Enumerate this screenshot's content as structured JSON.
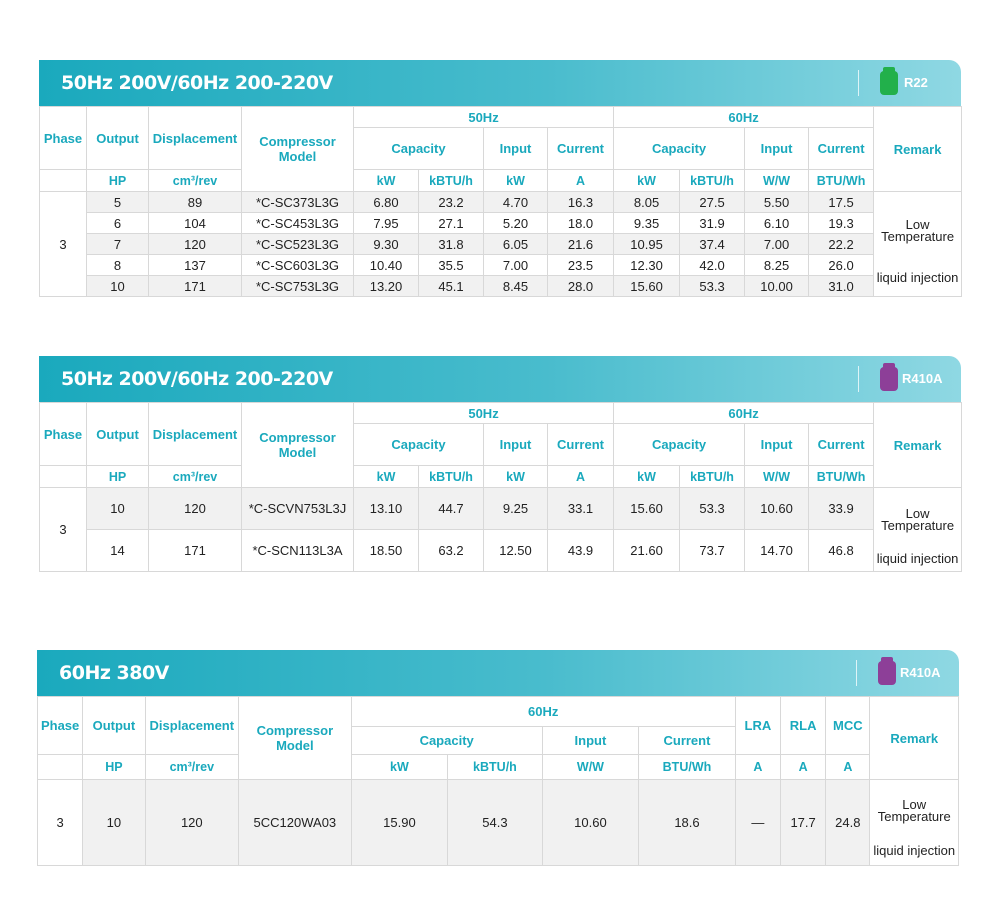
{
  "headers": {
    "phase": "Phase",
    "output": "Output",
    "displacement": "Displacement",
    "model": "Compressor Model",
    "hz50": "50Hz",
    "hz60": "60Hz",
    "capacity": "Capacity",
    "input": "Input",
    "current": "Current",
    "lra": "LRA",
    "rla": "RLA",
    "mcc": "MCC",
    "remark": "Remark"
  },
  "units": {
    "hp": "HP",
    "cm3": "cm³/rev",
    "kw": "kW",
    "kbtu": "kBTU/h",
    "a": "A",
    "ww": "W/W",
    "btuwh": "BTU/Wh"
  },
  "remark": {
    "low": "Low",
    "temperature": "Temperature",
    "injection": "liquid injection"
  },
  "colors": {
    "banner": "#1aa9bd",
    "r22": "#22b04b",
    "r410a": "#8d3f98"
  },
  "table1": {
    "title": "50Hz 200V/60Hz 200-220V",
    "refrigerant": "R22",
    "phase": "3",
    "rows": [
      [
        "5",
        "89",
        "*C-SC373L3G",
        "6.80",
        "23.2",
        "4.70",
        "16.3",
        "8.05",
        "27.5",
        "5.50",
        "17.5"
      ],
      [
        "6",
        "104",
        "*C-SC453L3G",
        "7.95",
        "27.1",
        "5.20",
        "18.0",
        "9.35",
        "31.9",
        "6.10",
        "19.3"
      ],
      [
        "7",
        "120",
        "*C-SC523L3G",
        "9.30",
        "31.8",
        "6.05",
        "21.6",
        "10.95",
        "37.4",
        "7.00",
        "22.2"
      ],
      [
        "8",
        "137",
        "*C-SC603L3G",
        "10.40",
        "35.5",
        "7.00",
        "23.5",
        "12.30",
        "42.0",
        "8.25",
        "26.0"
      ],
      [
        "10",
        "171",
        "*C-SC753L3G",
        "13.20",
        "45.1",
        "8.45",
        "28.0",
        "15.60",
        "53.3",
        "10.00",
        "31.0"
      ]
    ]
  },
  "table2": {
    "title": "50Hz 200V/60Hz 200-220V",
    "refrigerant": "R410A",
    "phase": "3",
    "rows": [
      [
        "10",
        "120",
        "*C-SCVN753L3J",
        "13.10",
        "44.7",
        "9.25",
        "33.1",
        "15.60",
        "53.3",
        "10.60",
        "33.9"
      ],
      [
        "14",
        "171",
        "*C-SCN113L3A",
        "18.50",
        "63.2",
        "12.50",
        "43.9",
        "21.60",
        "73.7",
        "14.70",
        "46.8"
      ]
    ]
  },
  "table3": {
    "title": "60Hz 380V",
    "refrigerant": "R410A",
    "row": [
      "3",
      "10",
      "120",
      "5CC120WA03",
      "15.90",
      "54.3",
      "10.60",
      "18.6",
      "—",
      "17.7",
      "24.8"
    ]
  }
}
